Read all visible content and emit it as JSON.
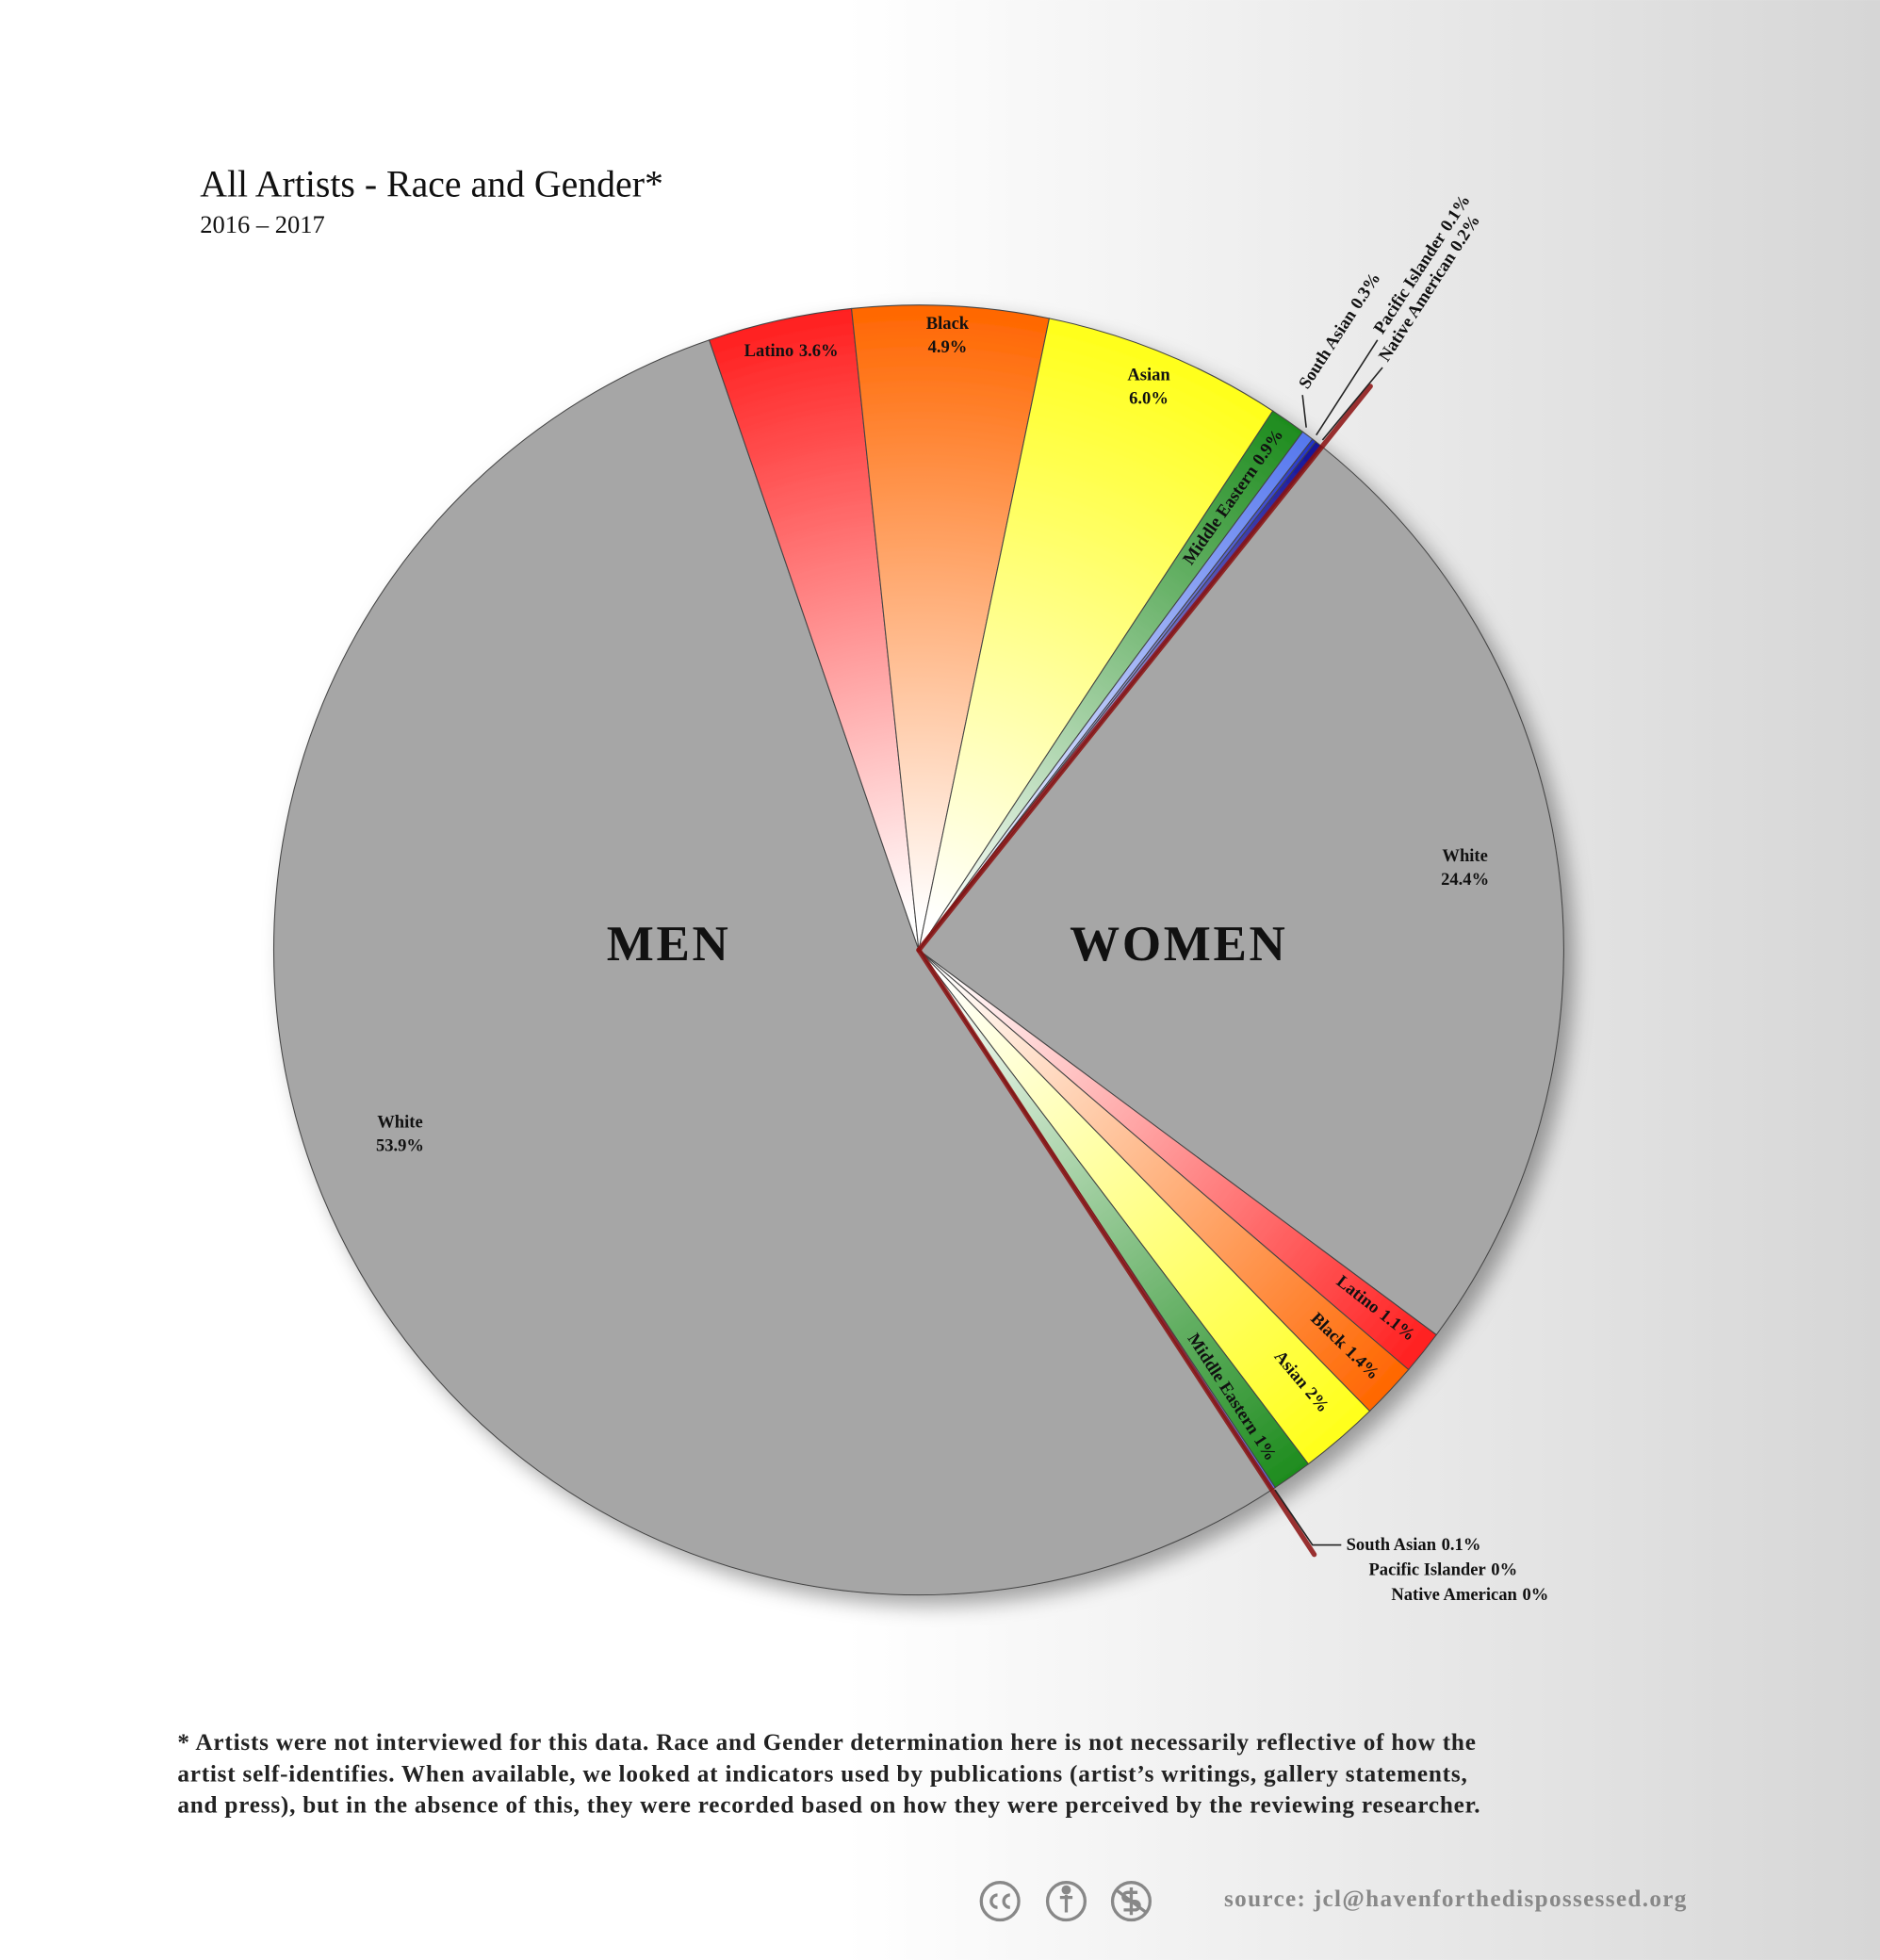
{
  "chart_data": {
    "type": "pie",
    "title": "All Artists - Race and Gender*",
    "subtitle": "2016 – 2017",
    "categories": [
      "White",
      "Latino",
      "Black",
      "Asian",
      "Middle Eastern",
      "South Asian",
      "Pacific Islander",
      "Native American"
    ],
    "colors": [
      "#a6a6a6",
      "#ff1f1f",
      "#ff6600",
      "#ffff1a",
      "#1e8c1e",
      "#5577ee",
      "#2233cc",
      "#111199"
    ],
    "series": [
      {
        "name": "MEN",
        "values": [
          53.9,
          3.6,
          4.9,
          6.0,
          0.9,
          0.3,
          0.1,
          0.2
        ],
        "value_labels": [
          "53.9%",
          "3.6%",
          "4.9%",
          "6.0%",
          "0.9%",
          "0.3%",
          "0.1%",
          "0.2%"
        ]
      },
      {
        "name": "WOMEN",
        "values": [
          24.4,
          1.1,
          1.4,
          2,
          1,
          0.1,
          0,
          0
        ],
        "value_labels": [
          "24.4%",
          "1.1%",
          "1.4%",
          "2%",
          "1%",
          "0.1%",
          "0%",
          "0%"
        ]
      }
    ],
    "footnote": [
      "* Artists were not interviewed for this data. Race and Gender determination here is not necessarily reflective of how the",
      "artist self-identifies. When available, we looked at indicators used by publications (artist’s writings, gallery statements,",
      "and press), but in the absence of this, they were recorded based on how they were perceived by the reviewing researcher."
    ],
    "source": "source: jcl@havenforthedispossessed.org"
  }
}
